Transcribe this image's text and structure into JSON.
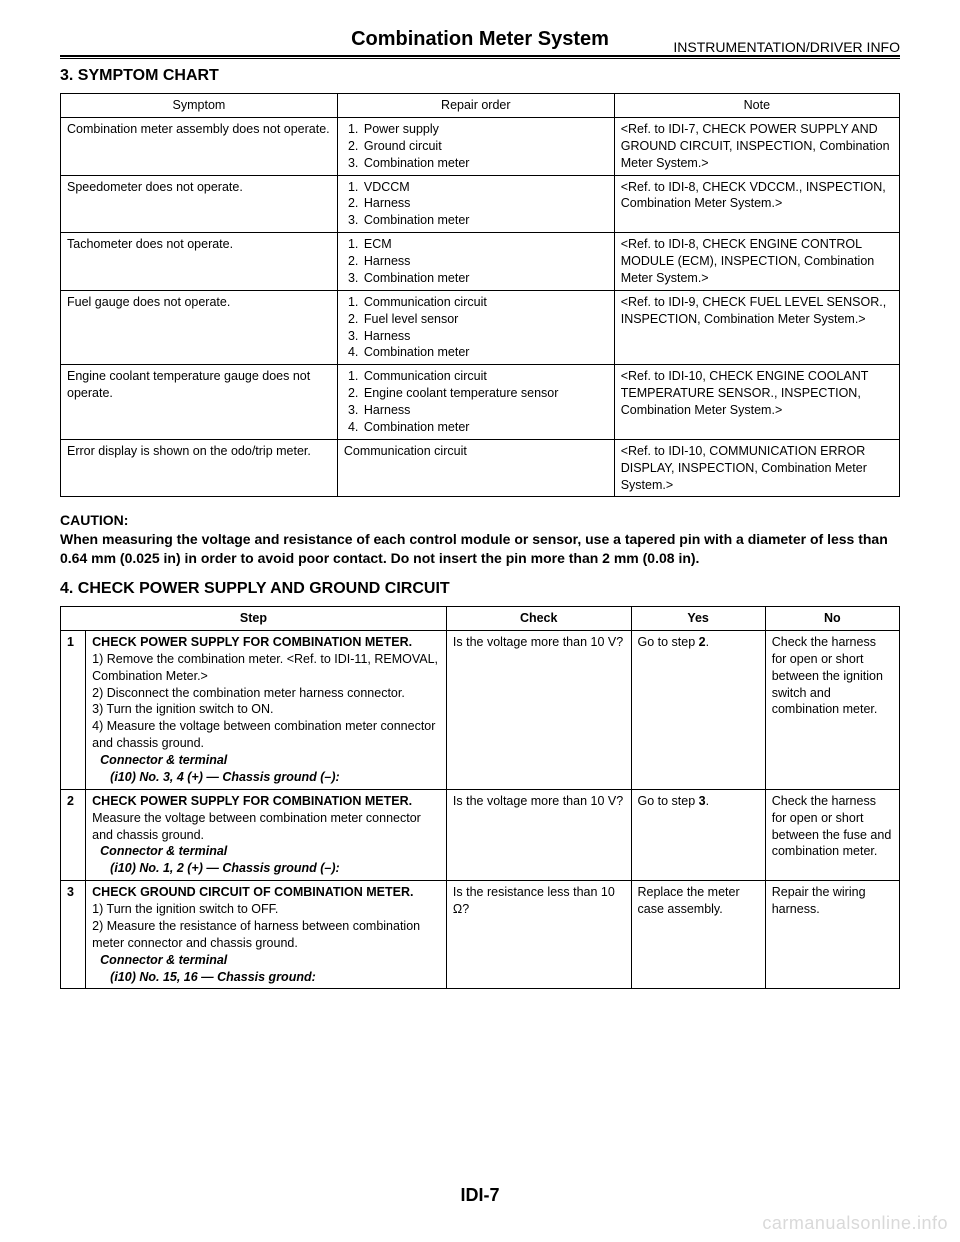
{
  "header": {
    "title": "Combination Meter System",
    "subtitle": "INSTRUMENTATION/DRIVER INFO"
  },
  "section3": {
    "heading": "3.  SYMPTOM CHART",
    "columns": [
      "Symptom",
      "Repair order",
      "Note"
    ],
    "rows": [
      {
        "symptom": "Combination meter assembly does not operate.",
        "repair": [
          "Power supply",
          "Ground circuit",
          "Combination meter"
        ],
        "note": "<Ref. to IDI-7, CHECK POWER SUPPLY AND GROUND CIRCUIT, INSPECTION, Combination Meter System.>"
      },
      {
        "symptom": "Speedometer does not operate.",
        "repair": [
          "VDCCM",
          "Harness",
          "Combination meter"
        ],
        "note": "<Ref. to IDI-8, CHECK VDCCM., INSPECTION, Combination Meter System.>"
      },
      {
        "symptom": "Tachometer does not operate.",
        "repair": [
          "ECM",
          "Harness",
          "Combination meter"
        ],
        "note": "<Ref. to IDI-8, CHECK ENGINE CONTROL MODULE (ECM), INSPECTION, Combination Meter System.>"
      },
      {
        "symptom": "Fuel gauge does not operate.",
        "repair": [
          "Communication circuit",
          "Fuel level sensor",
          "Harness",
          "Combination meter"
        ],
        "note": "<Ref. to IDI-9, CHECK FUEL LEVEL SENSOR., INSPECTION, Combination Meter System.>"
      },
      {
        "symptom": "Engine coolant temperature gauge does not operate.",
        "repair": [
          "Communication circuit",
          "Engine coolant temperature sensor",
          "Harness",
          "Combination meter"
        ],
        "note": "<Ref. to IDI-10, CHECK ENGINE COOLANT TEMPERATURE SENSOR., INSPECTION, Combination Meter System.>"
      },
      {
        "symptom": "Error display is shown on the odo/trip meter.",
        "repair_plain": "Communication circuit",
        "note": "<Ref. to IDI-10, COMMUNICATION ERROR DISPLAY, INSPECTION, Combination Meter System.>"
      }
    ]
  },
  "caution": {
    "label": "CAUTION:",
    "body": "When measuring the voltage and resistance of each control module or sensor, use a tapered pin with a diameter of less than 0.64 mm (0.025 in) in order to avoid poor contact. Do not insert the pin more than 2 mm (0.08 in)."
  },
  "section4": {
    "heading": "4.  CHECK POWER SUPPLY AND GROUND CIRCUIT",
    "columns": [
      "",
      "Step",
      "Check",
      "Yes",
      "No"
    ],
    "rows": [
      {
        "n": "1",
        "title": "CHECK POWER SUPPLY FOR COMBINATION METER.",
        "lines": [
          "1)  Remove the combination meter. <Ref. to IDI-11, REMOVAL, Combination Meter.>",
          "2)  Disconnect the combination meter harness connector.",
          "3)  Turn the ignition switch to ON.",
          "4)  Measure the voltage between combination meter connector and chassis ground."
        ],
        "conn": "Connector & terminal",
        "conn_sub": "(i10) No. 3, 4 (+) — Chassis ground (–):",
        "check": "Is the voltage more than 10 V?",
        "yes_pre": "Go to step ",
        "yes_b": "2",
        "yes_post": ".",
        "no": "Check the harness for open or short between the ignition switch and combination meter."
      },
      {
        "n": "2",
        "title": "CHECK POWER SUPPLY FOR COMBINATION METER.",
        "lines": [
          "Measure the voltage between combination meter connector and chassis ground."
        ],
        "conn": "Connector & terminal",
        "conn_sub": "(i10) No. 1, 2 (+) — Chassis ground (–):",
        "check": "Is the voltage more than 10 V?",
        "yes_pre": "Go to step ",
        "yes_b": "3",
        "yes_post": ".",
        "no": "Check the harness for open or short between the fuse and combination meter."
      },
      {
        "n": "3",
        "title": "CHECK GROUND CIRCUIT OF COMBINATION METER.",
        "lines": [
          "1)  Turn the ignition switch to OFF.",
          "2)  Measure the resistance of harness between combination meter connector and chassis ground."
        ],
        "conn": "Connector & terminal",
        "conn_sub": "(i10) No. 15, 16 — Chassis ground:",
        "check": "Is the resistance less than 10 Ω?",
        "yes_plain": "Replace the meter case assembly.",
        "no": "Repair the wiring harness."
      }
    ]
  },
  "footer": {
    "page": "IDI-7",
    "watermark": "carmanualsonline.info"
  }
}
